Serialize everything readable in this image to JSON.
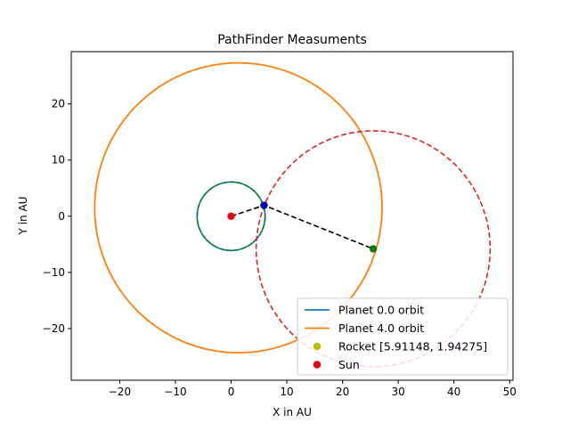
{
  "chart_data": {
    "type": "scatter",
    "title": "PathFinder Measuments",
    "xlabel": "X in AU",
    "ylabel": "Y in AU",
    "xlim": [
      -28.7,
      50.6
    ],
    "ylim": [
      -29.2,
      29.3
    ],
    "x_ticks": [
      -20,
      -10,
      0,
      10,
      20,
      30,
      40,
      50
    ],
    "y_ticks": [
      -20,
      -10,
      0,
      10,
      20
    ],
    "x_tick_labels": [
      "−20",
      "−10",
      "0",
      "10",
      "20",
      "30",
      "40",
      "50"
    ],
    "y_tick_labels": [
      "−20",
      "−10",
      "0",
      "10",
      "20"
    ],
    "grid": false,
    "legend_position": "lower-right",
    "series": [
      {
        "name": "Planet 0.0 orbit",
        "kind": "orbit",
        "center": [
          0,
          0
        ],
        "radius": 6.1,
        "color": "#1f77b4"
      },
      {
        "name": "Planet 4.0 orbit",
        "kind": "orbit",
        "center": [
          1.3,
          1.5
        ],
        "radius": 25.8,
        "color": "#ff7f0e"
      },
      {
        "name": "Rocket [5.91148, 1.94275]",
        "kind": "point",
        "x": 5.91148,
        "y": 1.94275,
        "color": "#bfbf00"
      },
      {
        "name": "Sun",
        "kind": "point",
        "x": 0,
        "y": 0,
        "color": "#e8000b"
      }
    ],
    "overlays": {
      "inner_orbit_overlay": {
        "center": [
          0,
          0
        ],
        "radius": 6.1,
        "color": "#008000"
      },
      "dashed_circle": {
        "center": [
          25.5,
          -5.8
        ],
        "radius": 21.0,
        "color": "#d62728"
      },
      "dashed_path": {
        "points": [
          [
            0,
            0
          ],
          [
            5.91148,
            1.94275
          ],
          [
            25.5,
            -5.8
          ]
        ],
        "color": "#000000"
      },
      "markers": [
        {
          "name": "rocket-position-marker",
          "x": 5.91148,
          "y": 1.94275,
          "color": "#0000b4"
        },
        {
          "name": "target-planet-marker",
          "x": 25.5,
          "y": -5.8,
          "color": "#008000"
        }
      ]
    }
  }
}
